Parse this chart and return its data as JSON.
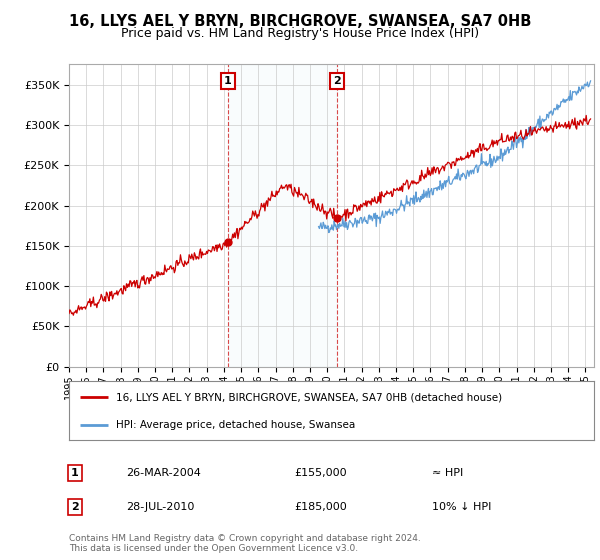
{
  "title_line1": "16, LLYS AEL Y BRYN, BIRCHGROVE, SWANSEA, SA7 0HB",
  "title_line2": "Price paid vs. HM Land Registry's House Price Index (HPI)",
  "ylim": [
    0,
    375000
  ],
  "yticks": [
    0,
    50000,
    100000,
    150000,
    200000,
    250000,
    300000,
    350000
  ],
  "ytick_labels": [
    "£0",
    "£50K",
    "£100K",
    "£150K",
    "£200K",
    "£250K",
    "£300K",
    "£350K"
  ],
  "background_color": "#ffffff",
  "grid_color": "#cccccc",
  "hpi_color": "#5b9bd5",
  "price_color": "#cc0000",
  "sale1_date_num": 2004.23,
  "sale1_price": 155000,
  "sale2_date_num": 2010.57,
  "sale2_price": 185000,
  "legend_line1": "16, LLYS AEL Y BRYN, BIRCHGROVE, SWANSEA, SA7 0HB (detached house)",
  "legend_line2": "HPI: Average price, detached house, Swansea",
  "footer": "Contains HM Land Registry data © Crown copyright and database right 2024.\nThis data is licensed under the Open Government Licence v3.0.",
  "table_row1_label": "1",
  "table_row1_date": "26-MAR-2004",
  "table_row1_price": "£155,000",
  "table_row1_hpi": "≈ HPI",
  "table_row2_label": "2",
  "table_row2_date": "28-JUL-2010",
  "table_row2_price": "£185,000",
  "table_row2_hpi": "10% ↓ HPI",
  "xlim_start": 1995,
  "xlim_end": 2025.5
}
